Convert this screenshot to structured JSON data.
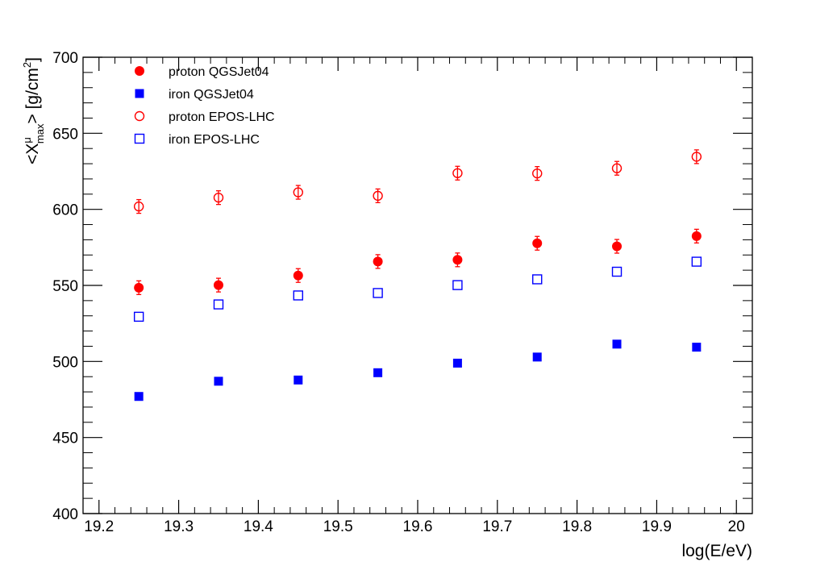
{
  "chart_data": {
    "type": "scatter",
    "title": "",
    "xlabel": "log(E/eV)",
    "ylabel": {
      "prefix": "<X",
      "superscript": "μ",
      "subscript": "max",
      "suffix": "> [g/cm",
      "unit_superscript": "2",
      "close": "]"
    },
    "xlim": [
      19.18,
      20.02
    ],
    "ylim": [
      400,
      700
    ],
    "x_ticks": [
      "19.2",
      "19.3",
      "19.4",
      "19.5",
      "19.6",
      "19.7",
      "19.8",
      "19.9",
      "20"
    ],
    "y_ticks": [
      "400",
      "450",
      "500",
      "550",
      "600",
      "650",
      "700"
    ],
    "grid": false,
    "legend_position": "top-left",
    "series": [
      {
        "name": "proton QGSJet04",
        "marker": "filled-circle",
        "color": "#ff0000",
        "x": [
          19.25,
          19.35,
          19.45,
          19.55,
          19.65,
          19.75,
          19.85,
          19.95
        ],
        "y": [
          548.5,
          550.2,
          556.5,
          565.7,
          566.8,
          577.7,
          575.7,
          582.4
        ],
        "err": [
          4.5,
          4.5,
          4.5,
          4.5,
          4.5,
          4.5,
          4.5,
          4.5
        ]
      },
      {
        "name": "iron QGSJet04",
        "marker": "filled-square",
        "color": "#0000ff",
        "x": [
          19.25,
          19.35,
          19.45,
          19.55,
          19.65,
          19.75,
          19.85,
          19.95
        ],
        "y": [
          477.0,
          487.0,
          487.8,
          492.6,
          498.9,
          502.9,
          511.4,
          509.4
        ],
        "err": [
          0,
          0,
          0,
          0,
          0,
          0,
          0,
          0
        ]
      },
      {
        "name": "proton EPOS-LHC",
        "marker": "open-circle",
        "color": "#ff0000",
        "x": [
          19.25,
          19.35,
          19.45,
          19.55,
          19.65,
          19.75,
          19.85,
          19.95
        ],
        "y": [
          601.9,
          607.7,
          611.2,
          608.9,
          623.8,
          623.6,
          627.0,
          634.6
        ],
        "err": [
          4.5,
          4.5,
          4.5,
          4.5,
          4.5,
          4.5,
          4.5,
          4.5
        ]
      },
      {
        "name": "iron EPOS-LHC",
        "marker": "open-square",
        "color": "#0000ff",
        "x": [
          19.25,
          19.35,
          19.45,
          19.55,
          19.65,
          19.75,
          19.85,
          19.95
        ],
        "y": [
          529.4,
          537.5,
          543.4,
          545.0,
          550.2,
          554.0,
          559.0,
          565.6
        ],
        "err": [
          0,
          0,
          0,
          0,
          0,
          0,
          0,
          0
        ]
      }
    ]
  }
}
